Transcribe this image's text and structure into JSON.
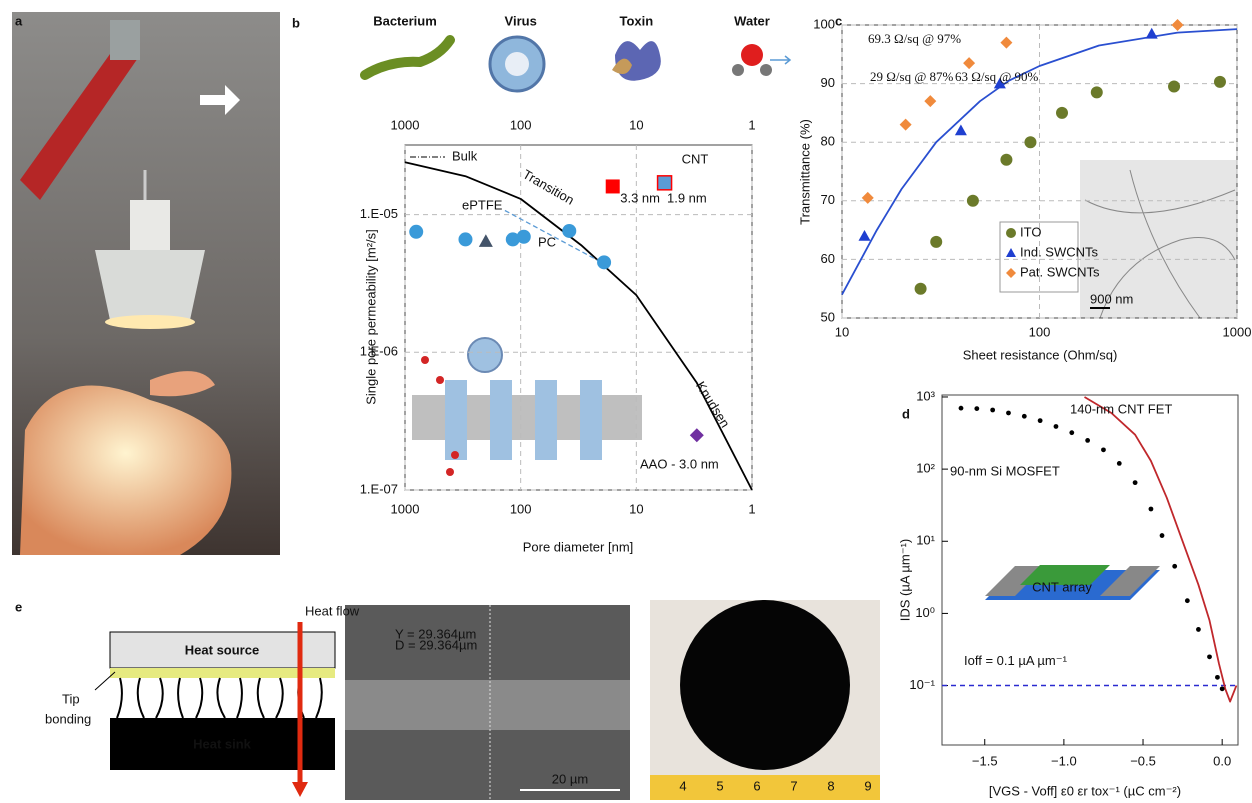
{
  "panel_labels": [
    "a",
    "b",
    "c",
    "d",
    "e"
  ],
  "chart_data": [
    {
      "type": "scatter",
      "x_label": "Pore diameter [nm]",
      "y_label": "Single pore permeability  [m²/s]",
      "xscale": "log",
      "yscale": "log",
      "xlim": [
        1000,
        1
      ],
      "ylim": [
        1e-07,
        3.2e-05
      ],
      "xticks": [
        1000,
        100,
        10,
        1
      ],
      "yticks": [
        {
          "value": 1e-07,
          "label": "1.E-07"
        },
        {
          "value": 1e-06,
          "label": "1.E-06"
        },
        {
          "value": 1e-05,
          "label": "1.E-05"
        }
      ],
      "grid": true,
      "top_labels": [
        "Bacterium",
        "Virus",
        "Toxin",
        "Water"
      ],
      "annotations": [
        "Bulk",
        "Knudsen",
        "CNT"
      ],
      "series": [
        {
          "name": "Transition",
          "type": "line",
          "color": "#000000",
          "x": [
            1000,
            300,
            100,
            30,
            10,
            3,
            1
          ],
          "values": [
            2.4e-05,
            1.9e-05,
            1.3e-05,
            6e-06,
            2.6e-06,
            6e-07,
            1e-07
          ]
        },
        {
          "type": "line",
          "style": "dashed",
          "color": "#5b9bd5",
          "x": [
            137,
            19
          ],
          "values": [
            1.07e-05,
            4.4e-06
          ]
        },
        {
          "name": "PC",
          "type": "scatter",
          "marker": "circle",
          "color": "#3a9ad9",
          "x": [
            800,
            300,
            117,
            94,
            38,
            19
          ],
          "values": [
            7.5e-06,
            6.6e-06,
            6.6e-06,
            6.9e-06,
            7.6e-06,
            4.5e-06
          ]
        },
        {
          "name": "ePTFE",
          "type": "scatter",
          "marker": "triangle",
          "color": "#44546a",
          "x": [
            200
          ],
          "values": [
            6.4e-06
          ]
        },
        {
          "name": "3.3 nm",
          "type": "scatter",
          "marker": "square",
          "color": "#ff0000",
          "x": [
            16
          ],
          "values": [
            1.6e-05
          ]
        },
        {
          "name": "1.9 nm",
          "type": "scatter",
          "marker": "square",
          "color": "#5b9bd5",
          "edge": "#ff0000",
          "x": [
            5.7
          ],
          "values": [
            1.7e-05
          ]
        },
        {
          "name": "AAO - 3.0 nm",
          "type": "scatter",
          "marker": "diamond",
          "color": "#7030a0",
          "x": [
            3.0
          ],
          "values": [
            2.5e-07
          ]
        }
      ]
    },
    {
      "type": "scatter",
      "x_label": "Sheet resistance (Ohm/sq)",
      "y_label": "Transmittance (%)",
      "xscale": "log",
      "yscale": "linear",
      "xlim": [
        10,
        1000
      ],
      "ylim": [
        50,
        100
      ],
      "xticks": [
        10,
        100,
        1000
      ],
      "yticks": [
        50,
        60,
        70,
        80,
        90,
        100
      ],
      "grid": true,
      "annotations": [
        "69.3 Ω/sq @ 97%",
        "29 Ω/sq @ 87%",
        "63 Ω/sq @ 90%"
      ],
      "inset_label": "900 nm",
      "series": [
        {
          "type": "line",
          "color": "#2a4fd0",
          "x": [
            10,
            15,
            20,
            30,
            50,
            70,
            100,
            200,
            500,
            1000
          ],
          "values": [
            54,
            65,
            72,
            80,
            87,
            90.5,
            93,
            96.5,
            98.7,
            99.3
          ]
        },
        {
          "name": "ITO",
          "type": "scatter",
          "marker": "circle",
          "color": "#6b7a2a",
          "x": [
            25,
            30,
            46,
            68,
            90,
            130,
            195,
            480,
            820
          ],
          "values": [
            55,
            63,
            70,
            77,
            80,
            85,
            88.5,
            89.5,
            90.3
          ]
        },
        {
          "name": "Ind. SWCNTs",
          "type": "scatter",
          "marker": "triangle",
          "color": "#1f3fd0",
          "x": [
            13,
            40,
            63,
            370
          ],
          "values": [
            64,
            82,
            90,
            98.5
          ]
        },
        {
          "name": "Pat. SWCNTs",
          "type": "scatter",
          "marker": "diamond",
          "color": "#f08a3c",
          "x": [
            13.5,
            21,
            28,
            44,
            68,
            500
          ],
          "values": [
            70.5,
            83,
            87,
            93.5,
            97,
            100
          ]
        }
      ]
    },
    {
      "type": "line",
      "x_label": "[VGS - Voff] ε0 εr tox⁻¹ (µC cm⁻²)",
      "y_label": "IDS (µA µm⁻¹)",
      "xscale": "linear",
      "yscale": "log",
      "xlim": [
        -1.77,
        0.1
      ],
      "ylim": [
        0.015,
        1065
      ],
      "xticks": [
        {
          "value": -1.5,
          "label": "−1.5"
        },
        {
          "value": -1.0,
          "label": "−1.0"
        },
        {
          "value": -0.5,
          "label": "−0.5"
        },
        {
          "value": 0,
          "label": "0.0"
        }
      ],
      "yticks": [
        {
          "value": 0.1,
          "label": "10⁻¹"
        },
        {
          "value": 1,
          "label": "10⁰"
        },
        {
          "value": 10,
          "label": "10¹"
        },
        {
          "value": 100,
          "label": "10²"
        },
        {
          "value": 1000,
          "label": "10³"
        }
      ],
      "grid": false,
      "annotations": [
        "CNT array"
      ],
      "reference_line": {
        "value": 0.1,
        "label": "Ioff = 0.1 µA µm⁻¹",
        "color": "#2a2ad0"
      },
      "series": [
        {
          "name": "140-nm CNT FET",
          "type": "line",
          "color": "#c0282c",
          "x": [
            -0.87,
            -0.7,
            -0.55,
            -0.45,
            -0.35,
            -0.25,
            -0.15,
            -0.08,
            -0.02,
            0.02,
            0.05,
            0.09
          ],
          "values": [
            1000,
            600,
            300,
            130,
            40,
            10,
            2.5,
            0.8,
            0.2,
            0.09,
            0.06,
            0.1
          ]
        },
        {
          "name": "90-nm Si MOSFET",
          "type": "scatter",
          "marker": "dot",
          "color": "#000000",
          "x": [
            -1.65,
            -1.55,
            -1.45,
            -1.35,
            -1.25,
            -1.15,
            -1.05,
            -0.95,
            -0.85,
            -0.75,
            -0.65,
            -0.55,
            -0.45,
            -0.38,
            -0.3,
            -0.22,
            -0.15,
            -0.08,
            -0.03,
            0.0
          ],
          "values": [
            700,
            690,
            660,
            600,
            540,
            470,
            390,
            320,
            250,
            185,
            120,
            65,
            28,
            12,
            4.5,
            1.5,
            0.6,
            0.25,
            0.13,
            0.09
          ]
        }
      ]
    }
  ],
  "figure_e": {
    "heat_flow": "Heat flow",
    "heat_source": "Heat source",
    "tip_bonding": [
      "Tip",
      "bonding"
    ],
    "heat_sink": "Heat sink",
    "sem_labels": [
      "Y = 29.364µm",
      "D = 29.364µm"
    ],
    "sem_scale": "20 µm",
    "ruler_labels": [
      "4",
      "5",
      "6",
      "7",
      "8",
      "9"
    ]
  }
}
